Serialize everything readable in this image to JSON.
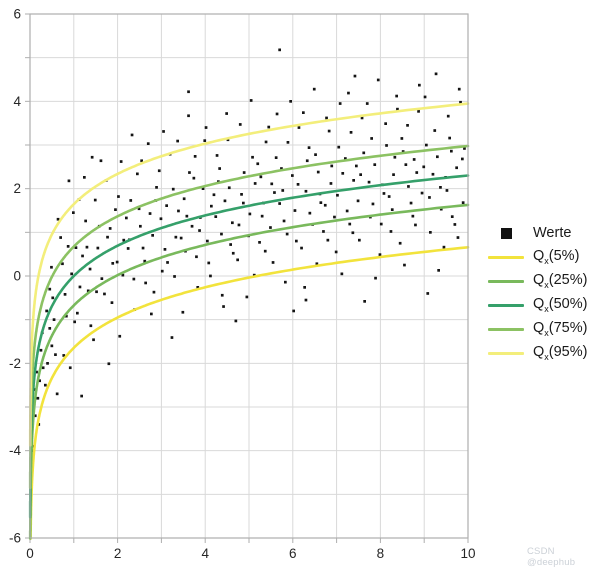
{
  "watermark": "CSDN @deephub",
  "chart_data": {
    "type": "scatter",
    "model": "y = ln(x) + quantile_offset, noise ~ N(0,1)",
    "grid": true,
    "legend_position": "right-center",
    "x_axis": {
      "min": 0,
      "max": 10,
      "grid_step": 1,
      "tick_labels": [
        "0",
        "2",
        "4",
        "6",
        "8",
        "10"
      ],
      "tick_values": [
        0,
        2,
        4,
        6,
        8,
        10
      ]
    },
    "y_axis": {
      "min": -6,
      "max": 6,
      "grid_step": 1,
      "tick_labels": [
        "-6",
        "-4",
        "-2",
        "0",
        "2",
        "4",
        "6"
      ],
      "tick_values": [
        -6,
        -4,
        -2,
        0,
        2,
        4,
        6
      ]
    },
    "scatter_series": {
      "label": "Werte",
      "color": "#141414",
      "marker": "square",
      "points": [
        [
          0.04,
          -4.3
        ],
        [
          0.06,
          -4.0
        ],
        [
          0.05,
          -3.6
        ],
        [
          0.09,
          -3.9
        ],
        [
          0.12,
          -3.2
        ],
        [
          0.1,
          -2.6
        ],
        [
          0.18,
          -2.8
        ],
        [
          0.15,
          -2.2
        ],
        [
          0.22,
          -2.4
        ],
        [
          0.25,
          -1.7
        ],
        [
          0.2,
          -3.4
        ],
        [
          0.3,
          -2.1
        ],
        [
          0.35,
          -2.5
        ],
        [
          0.28,
          -1.3
        ],
        [
          0.4,
          -2.0
        ],
        [
          0.45,
          -1.2
        ],
        [
          0.38,
          -0.8
        ],
        [
          0.5,
          -1.6
        ],
        [
          0.45,
          -0.3
        ],
        [
          0.58,
          -1.8
        ],
        [
          0.49,
          0.2
        ],
        [
          0.64,
          1.3
        ],
        [
          0.55,
          -1.0
        ],
        [
          0.52,
          -0.5
        ],
        [
          0.62,
          -2.7
        ],
        [
          0.7,
          0.88
        ],
        [
          0.83,
          -0.92
        ],
        [
          0.74,
          0.28
        ],
        [
          0.89,
          2.18
        ],
        [
          0.8,
          -0.42
        ],
        [
          0.77,
          -1.82
        ],
        [
          0.87,
          0.68
        ],
        [
          0.95,
          0.05
        ],
        [
          1.08,
          -0.85
        ],
        [
          0.99,
          1.45
        ],
        [
          1.14,
          -0.25
        ],
        [
          1.05,
          0.65
        ],
        [
          1.02,
          -1.05
        ],
        [
          1.12,
          1.75
        ],
        [
          1.2,
          0.46
        ],
        [
          1.33,
          -0.34
        ],
        [
          1.24,
          2.26
        ],
        [
          1.39,
          -1.14
        ],
        [
          1.3,
          0.66
        ],
        [
          1.27,
          1.26
        ],
        [
          1.37,
          0.16
        ],
        [
          1.45,
          -1.46
        ],
        [
          1.58,
          1.14
        ],
        [
          1.49,
          1.74
        ],
        [
          1.64,
          -0.06
        ],
        [
          1.55,
          0.64
        ],
        [
          1.52,
          -0.36
        ],
        [
          1.62,
          2.64
        ],
        [
          1.7,
          -0.41
        ],
        [
          1.83,
          1.09
        ],
        [
          1.74,
          2.19
        ],
        [
          1.89,
          0.29
        ],
        [
          1.8,
          -2.01
        ],
        [
          1.77,
          0.89
        ],
        [
          1.87,
          -0.61
        ],
        [
          1.95,
          1.52
        ],
        [
          2.08,
          2.62
        ],
        [
          1.99,
          0.32
        ],
        [
          2.14,
          0.82
        ],
        [
          2.05,
          -1.38
        ],
        [
          2.02,
          1.82
        ],
        [
          2.12,
          0.02
        ],
        [
          2.2,
          1.33
        ],
        [
          2.33,
          3.23
        ],
        [
          2.24,
          0.63
        ],
        [
          2.39,
          -0.77
        ],
        [
          2.3,
          1.73
        ],
        [
          2.27,
          0.83
        ],
        [
          2.37,
          -0.07
        ],
        [
          2.45,
          2.34
        ],
        [
          2.58,
          0.64
        ],
        [
          2.49,
          1.54
        ],
        [
          2.64,
          -0.16
        ],
        [
          2.55,
          2.64
        ],
        [
          2.52,
          1.14
        ],
        [
          2.62,
          0.34
        ],
        [
          2.7,
          3.03
        ],
        [
          2.83,
          -0.37
        ],
        [
          2.74,
          1.43
        ],
        [
          2.89,
          2.03
        ],
        [
          2.8,
          0.93
        ],
        [
          2.77,
          -0.87
        ],
        [
          2.87,
          1.73
        ],
        [
          2.95,
          2.41
        ],
        [
          3.08,
          0.61
        ],
        [
          2.99,
          1.31
        ],
        [
          3.14,
          0.31
        ],
        [
          3.05,
          3.31
        ],
        [
          3.02,
          0.11
        ],
        [
          3.12,
          1.61
        ],
        [
          3.2,
          2.79
        ],
        [
          3.33,
          0.89
        ],
        [
          3.24,
          -1.41
        ],
        [
          3.39,
          1.49
        ],
        [
          3.3,
          -0.01
        ],
        [
          3.27,
          1.99
        ],
        [
          3.37,
          3.09
        ],
        [
          3.45,
          0.87
        ],
        [
          3.58,
          1.37
        ],
        [
          3.49,
          -0.83
        ],
        [
          3.64,
          2.37
        ],
        [
          3.55,
          0.57
        ],
        [
          3.52,
          1.77
        ],
        [
          3.62,
          3.67
        ],
        [
          3.7,
          1.14
        ],
        [
          3.83,
          -0.26
        ],
        [
          3.74,
          2.24
        ],
        [
          3.89,
          1.34
        ],
        [
          3.8,
          0.44
        ],
        [
          3.77,
          2.74
        ],
        [
          3.87,
          1.04
        ],
        [
          3.95,
          2.0
        ],
        [
          4.08,
          0.3
        ],
        [
          3.99,
          3.1
        ],
        [
          4.14,
          1.6
        ],
        [
          4.05,
          0.8
        ],
        [
          4.02,
          3.4
        ],
        [
          4.12,
          0.0
        ],
        [
          4.2,
          1.86
        ],
        [
          4.33,
          2.46
        ],
        [
          4.24,
          1.36
        ],
        [
          4.39,
          -0.44
        ],
        [
          4.3,
          2.16
        ],
        [
          4.27,
          2.76
        ],
        [
          4.37,
          0.96
        ],
        [
          4.45,
          1.72
        ],
        [
          4.58,
          0.72
        ],
        [
          4.49,
          3.72
        ],
        [
          4.64,
          0.52
        ],
        [
          4.55,
          2.02
        ],
        [
          4.52,
          3.12
        ],
        [
          4.62,
          1.22
        ],
        [
          4.7,
          -1.03
        ],
        [
          4.83,
          1.87
        ],
        [
          4.74,
          0.37
        ],
        [
          4.89,
          2.37
        ],
        [
          4.8,
          3.47
        ],
        [
          4.77,
          1.17
        ],
        [
          4.87,
          1.67
        ],
        [
          4.95,
          -0.48
        ],
        [
          5.08,
          2.72
        ],
        [
          4.99,
          0.92
        ],
        [
          5.14,
          2.12
        ],
        [
          5.05,
          4.02
        ],
        [
          5.02,
          1.42
        ],
        [
          5.12,
          0.02
        ],
        [
          5.2,
          2.57
        ],
        [
          5.33,
          1.67
        ],
        [
          5.24,
          0.77
        ],
        [
          5.39,
          3.07
        ],
        [
          5.3,
          1.37
        ],
        [
          5.27,
          2.27
        ],
        [
          5.37,
          0.57
        ],
        [
          5.45,
          3.41
        ],
        [
          5.58,
          1.91
        ],
        [
          5.49,
          1.11
        ],
        [
          5.64,
          3.71
        ],
        [
          5.55,
          0.31
        ],
        [
          5.52,
          2.11
        ],
        [
          5.62,
          2.71
        ],
        [
          5.7,
          1.66
        ],
        [
          5.83,
          -0.14
        ],
        [
          5.74,
          2.46
        ],
        [
          5.89,
          3.06
        ],
        [
          5.8,
          1.26
        ],
        [
          5.77,
          1.96
        ],
        [
          5.87,
          0.96
        ],
        [
          5.95,
          4.0
        ],
        [
          6.08,
          0.8
        ],
        [
          5.99,
          2.3
        ],
        [
          6.14,
          3.4
        ],
        [
          6.05,
          1.5
        ],
        [
          6.02,
          -0.8
        ],
        [
          6.12,
          2.1
        ],
        [
          6.2,
          0.64
        ],
        [
          6.33,
          2.64
        ],
        [
          6.24,
          3.74
        ],
        [
          6.39,
          1.44
        ],
        [
          6.3,
          1.94
        ],
        [
          6.27,
          -0.26
        ],
        [
          6.37,
          2.94
        ],
        [
          6.45,
          1.18
        ],
        [
          6.58,
          2.38
        ],
        [
          6.49,
          4.28
        ],
        [
          6.64,
          1.68
        ],
        [
          6.55,
          0.28
        ],
        [
          6.52,
          2.78
        ],
        [
          6.62,
          1.88
        ],
        [
          6.7,
          1.02
        ],
        [
          6.83,
          3.32
        ],
        [
          6.74,
          1.62
        ],
        [
          6.89,
          2.52
        ],
        [
          6.8,
          0.82
        ],
        [
          6.77,
          3.62
        ],
        [
          6.87,
          2.12
        ],
        [
          6.95,
          1.35
        ],
        [
          7.08,
          3.95
        ],
        [
          6.99,
          0.55
        ],
        [
          7.14,
          2.35
        ],
        [
          7.05,
          2.95
        ],
        [
          7.02,
          1.85
        ],
        [
          7.12,
          0.05
        ],
        [
          7.2,
          2.69
        ],
        [
          7.33,
          3.29
        ],
        [
          7.24,
          1.49
        ],
        [
          7.39,
          2.19
        ],
        [
          7.3,
          1.19
        ],
        [
          7.27,
          4.19
        ],
        [
          7.37,
          0.99
        ],
        [
          7.45,
          2.52
        ],
        [
          7.58,
          3.62
        ],
        [
          7.49,
          1.72
        ],
        [
          7.64,
          -0.58
        ],
        [
          7.55,
          2.32
        ],
        [
          7.52,
          0.82
        ],
        [
          7.62,
          2.82
        ],
        [
          7.7,
          3.95
        ],
        [
          7.83,
          1.65
        ],
        [
          7.74,
          2.15
        ],
        [
          7.89,
          -0.05
        ],
        [
          7.8,
          3.15
        ],
        [
          7.77,
          1.35
        ],
        [
          7.87,
          2.55
        ],
        [
          7.95,
          4.49
        ],
        [
          8.08,
          1.89
        ],
        [
          7.99,
          0.49
        ],
        [
          8.14,
          2.99
        ],
        [
          8.05,
          2.09
        ],
        [
          8.02,
          1.19
        ],
        [
          8.12,
          3.49
        ],
        [
          8.2,
          1.82
        ],
        [
          8.33,
          2.72
        ],
        [
          8.24,
          1.02
        ],
        [
          8.39,
          3.82
        ],
        [
          8.3,
          2.32
        ],
        [
          8.27,
          1.52
        ],
        [
          8.37,
          4.12
        ],
        [
          8.45,
          0.75
        ],
        [
          8.58,
          2.55
        ],
        [
          8.49,
          3.15
        ],
        [
          8.64,
          2.05
        ],
        [
          8.55,
          0.25
        ],
        [
          8.52,
          2.85
        ],
        [
          8.62,
          3.45
        ],
        [
          8.7,
          1.67
        ],
        [
          8.83,
          2.37
        ],
        [
          8.74,
          1.37
        ],
        [
          8.89,
          4.37
        ],
        [
          8.8,
          1.17
        ],
        [
          8.77,
          2.67
        ],
        [
          8.87,
          3.77
        ],
        [
          8.95,
          1.9
        ],
        [
          9.08,
          -0.4
        ],
        [
          8.99,
          2.5
        ],
        [
          9.14,
          1.0
        ],
        [
          9.05,
          3.0
        ],
        [
          9.02,
          4.1
        ],
        [
          9.12,
          1.8
        ],
        [
          9.2,
          2.33
        ],
        [
          9.33,
          0.13
        ],
        [
          9.24,
          3.33
        ],
        [
          9.39,
          1.53
        ],
        [
          9.3,
          2.73
        ],
        [
          9.27,
          4.63
        ],
        [
          9.37,
          2.03
        ],
        [
          9.45,
          0.66
        ],
        [
          9.58,
          3.16
        ],
        [
          9.49,
          2.26
        ],
        [
          9.64,
          1.36
        ],
        [
          9.55,
          3.66
        ],
        [
          9.52,
          1.96
        ],
        [
          9.62,
          2.86
        ],
        [
          9.7,
          1.18
        ],
        [
          9.83,
          3.98
        ],
        [
          9.74,
          2.48
        ],
        [
          9.89,
          1.68
        ],
        [
          9.8,
          4.28
        ],
        [
          9.77,
          0.88
        ],
        [
          9.87,
          2.68
        ],
        [
          5.7,
          5.18
        ],
        [
          3.62,
          4.22
        ],
        [
          7.42,
          4.58
        ],
        [
          1.42,
          2.72
        ],
        [
          1.18,
          -2.75
        ],
        [
          0.92,
          -2.1
        ],
        [
          9.92,
          2.92
        ],
        [
          6.3,
          -0.55
        ],
        [
          4.42,
          -0.7
        ]
      ]
    },
    "quantile_curves": [
      {
        "label": "Qx(5%)",
        "pre": "Q",
        "sub": "x",
        "post": "(5%)",
        "color": "#f2e33c",
        "offset": -1.645,
        "y_at_x10": 0.66
      },
      {
        "label": "Qx(25%)",
        "pre": "Q",
        "sub": "x",
        "post": "(25%)",
        "color": "#79b95c",
        "offset": -0.674,
        "y_at_x10": 1.63
      },
      {
        "label": "Qx(50%)",
        "pre": "Q",
        "sub": "x",
        "post": "(50%)",
        "color": "#35a06a",
        "offset": 0.0,
        "y_at_x10": 2.3
      },
      {
        "label": "Qx(75%)",
        "pre": "Q",
        "sub": "x",
        "post": "(75%)",
        "color": "#8cc263",
        "offset": 0.674,
        "y_at_x10": 2.98
      },
      {
        "label": "Qx(95%)",
        "pre": "Q",
        "sub": "x",
        "post": "(95%)",
        "color": "#f3ee7b",
        "offset": 1.645,
        "y_at_x10": 3.95
      }
    ]
  }
}
